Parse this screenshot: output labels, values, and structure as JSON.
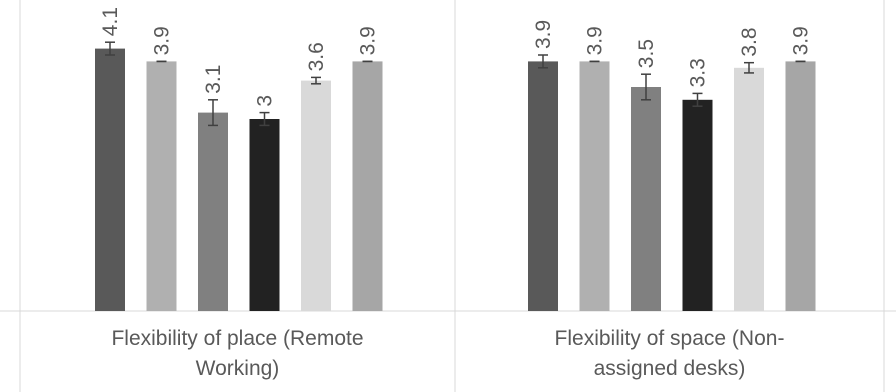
{
  "chart_data": {
    "type": "bar",
    "categories": [
      [
        "Flexibility of place (Remote",
        "Working)"
      ],
      [
        "Flexibility of space (Non-",
        "assigned desks)"
      ]
    ],
    "series": [
      {
        "values": [
          4.1,
          3.9
        ],
        "error": [
          0.1,
          0.1
        ],
        "color": "#595959",
        "value_labels": [
          "4.1",
          "3.9"
        ]
      },
      {
        "values": [
          3.9,
          3.9
        ],
        "error": [
          0.0,
          0.0
        ],
        "color": "#b0b0b0",
        "value_labels": [
          "3.9",
          "3.9"
        ]
      },
      {
        "values": [
          3.1,
          3.5
        ],
        "error": [
          0.2,
          0.2
        ],
        "color": "#808080",
        "value_labels": [
          "3.1",
          "3.5"
        ]
      },
      {
        "values": [
          3.0,
          3.3
        ],
        "error": [
          0.1,
          0.1
        ],
        "color": "#222222",
        "value_labels": [
          "3",
          "3.3"
        ]
      },
      {
        "values": [
          3.6,
          3.8
        ],
        "error": [
          0.05,
          0.08
        ],
        "color": "#d9d9d9",
        "value_labels": [
          "3.6",
          "3.8"
        ]
      },
      {
        "values": [
          3.9,
          3.9
        ],
        "error": [
          0.0,
          0.0
        ],
        "color": "#a6a6a6",
        "value_labels": [
          "3.9",
          "3.9"
        ]
      }
    ],
    "title": "",
    "xlabel": "",
    "ylabel": "",
    "grid": false,
    "legend": "none",
    "axis_color": "#d9d9d9",
    "error_bar_color": "#404040",
    "label_color": "#595959"
  }
}
